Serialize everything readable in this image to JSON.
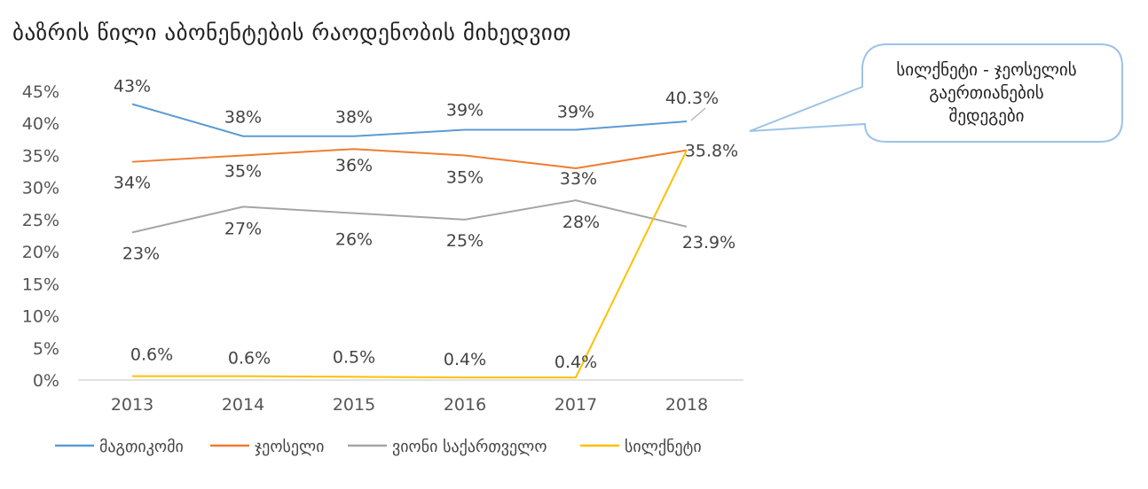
{
  "chart_data": {
    "type": "line",
    "title": "ბაზრის წილი აბონენტების რაოდენობის მიხედვით",
    "categories": [
      "2013",
      "2014",
      "2015",
      "2016",
      "2017",
      "2018"
    ],
    "ylim": [
      0,
      45
    ],
    "yticks": [
      "0%",
      "5%",
      "10%",
      "15%",
      "20%",
      "25%",
      "30%",
      "35%",
      "40%",
      "45%"
    ],
    "grid": false,
    "legend_position": "bottom",
    "series": [
      {
        "name": "მაგთიკომი",
        "color": "#5B9BD5",
        "values": [
          43,
          38,
          38,
          39,
          39,
          40.3
        ],
        "labels": [
          "43%",
          "38%",
          "38%",
          "39%",
          "39%",
          "40.3%"
        ]
      },
      {
        "name": "ჯეოსელი",
        "color": "#ED7D31",
        "values": [
          34,
          35,
          36,
          35,
          33,
          35.8
        ],
        "labels": [
          "34%",
          "35%",
          "36%",
          "35%",
          "33%",
          "35.8%"
        ]
      },
      {
        "name": "ვიონი საქართველო",
        "color": "#A5A5A5",
        "values": [
          23,
          27,
          26,
          25,
          28,
          23.9
        ],
        "labels": [
          "23%",
          "27%",
          "26%",
          "25%",
          "28%",
          "23.9%"
        ]
      },
      {
        "name": "სილქნეტი",
        "color": "#FFC000",
        "values": [
          0.6,
          0.6,
          0.5,
          0.4,
          0.4,
          35.8
        ],
        "labels": [
          "0.6%",
          "0.6%",
          "0.5%",
          "0.4%",
          "0.4%",
          ""
        ]
      }
    ],
    "annotation": {
      "lines": [
        "სილქნეტი - ჯეოსელის",
        "გაერთიანების",
        "შედეგები"
      ],
      "border_color": "#9DC3E6"
    }
  }
}
